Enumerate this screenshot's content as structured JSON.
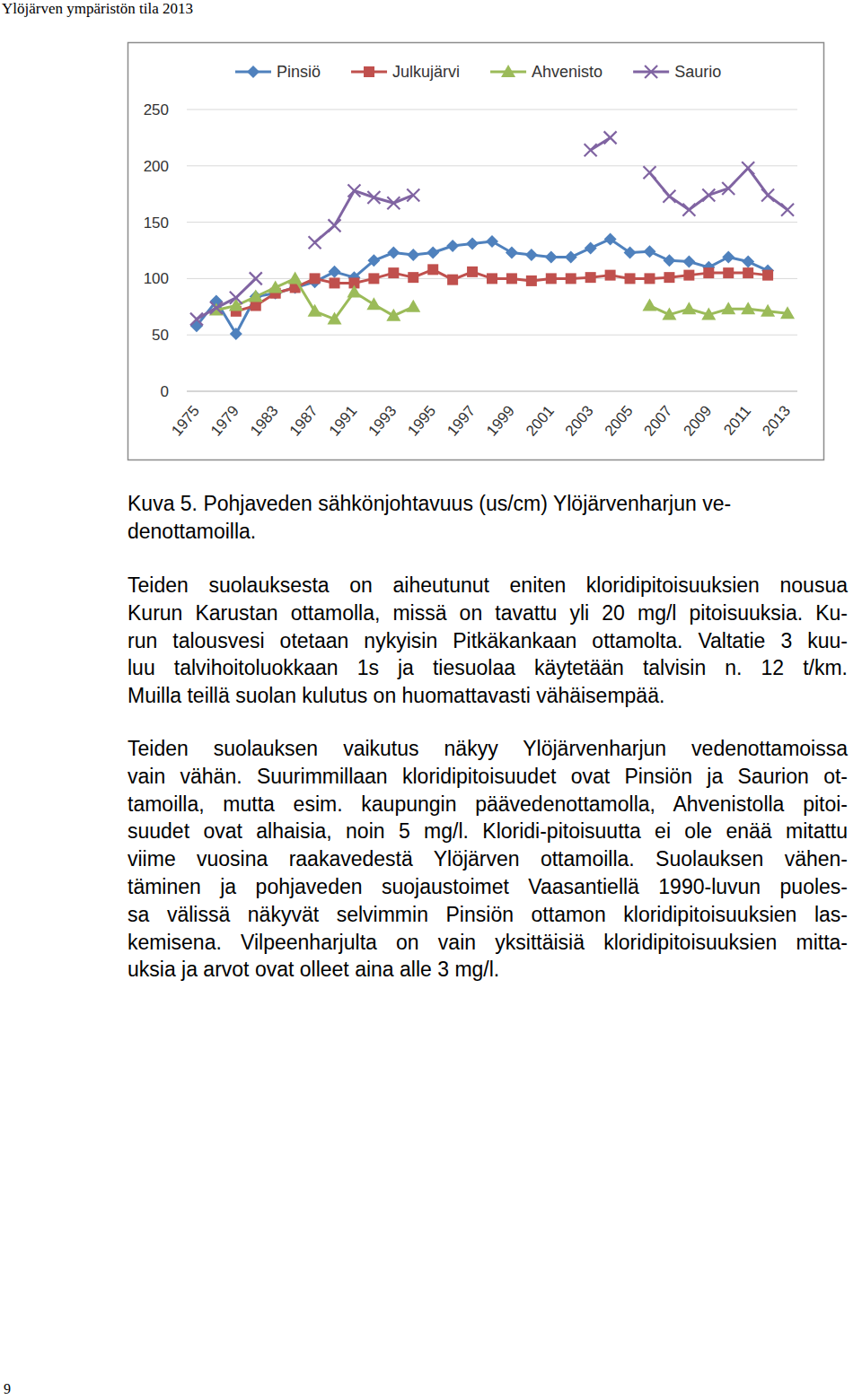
{
  "header": "Ylöjärven ympäristön tila 2013",
  "chart_data": {
    "type": "line",
    "categories": [
      "1975",
      null,
      "1979",
      null,
      "1983",
      null,
      "1987",
      null,
      "1991",
      null,
      "1993",
      null,
      "1995",
      null,
      "1997",
      null,
      "1999",
      null,
      "2001",
      null,
      "2003",
      null,
      "2005",
      null,
      "2007",
      null,
      "2009",
      null,
      "2011",
      null,
      "2013"
    ],
    "series": [
      {
        "name": "Pinsiö",
        "color": "#4f81bd",
        "marker": "diamond",
        "values": [
          58,
          80,
          51,
          84,
          87,
          92,
          97,
          106,
          101,
          116,
          123,
          121,
          123,
          129,
          131,
          133,
          123,
          121,
          119,
          119,
          127,
          135,
          123,
          124,
          116,
          115,
          110,
          119,
          115,
          107,
          null
        ]
      },
      {
        "name": "Julkujärvi",
        "color": "#c0504d",
        "marker": "square",
        "values": [
          null,
          null,
          71,
          76,
          87,
          92,
          100,
          96,
          96,
          100,
          105,
          101,
          108,
          99,
          106,
          100,
          100,
          98,
          100,
          100,
          101,
          103,
          100,
          100,
          101,
          103,
          105,
          105,
          105,
          103,
          null
        ]
      },
      {
        "name": "Ahvenisto",
        "color": "#9bbb59",
        "marker": "triangle",
        "values": [
          null,
          72,
          76,
          84,
          92,
          100,
          71,
          64,
          88,
          77,
          67,
          75,
          null,
          null,
          null,
          null,
          null,
          null,
          null,
          null,
          null,
          null,
          null,
          76,
          68,
          73,
          68,
          73,
          73,
          71,
          69
        ]
      },
      {
        "name": "Saurio",
        "color": "#8064a2",
        "marker": "x",
        "values": [
          64,
          74,
          83,
          100,
          null,
          null,
          132,
          147,
          178,
          172,
          167,
          174,
          null,
          null,
          null,
          null,
          null,
          null,
          null,
          null,
          214,
          225,
          null,
          194,
          173,
          161,
          174,
          180,
          198,
          174,
          161
        ]
      }
    ],
    "ylim": [
      0,
      250
    ],
    "yticks": [
      0,
      50,
      100,
      150,
      200,
      250
    ],
    "grid": true,
    "legend": "top"
  },
  "caption": [
    "Kuva 5. Pohjaveden sähkönjohtavuus (us/cm) Ylöjärvenharjun ve-",
    "denottamoilla."
  ],
  "paragraphs": [
    [
      "Teiden suolauksesta on aiheutunut eniten kloridipitoisuuksien nousua",
      "Kurun Karustan ottamolla, missä on tavattu yli 20 mg/l pitoisuuksia. Ku-",
      "run talousvesi otetaan nykyisin Pitkäkankaan ottamolta. Valtatie 3 kuu-",
      "luu talvihoitoluokkaan 1s ja tiesuolaa käytetään talvisin n. 12 t/km.",
      "Muilla teillä suolan kulutus on huomattavasti vähäisempää."
    ],
    [
      "Teiden suolauksen vaikutus näkyy Ylöjärvenharjun vedenottamoissa",
      "vain vähän. Suurimmillaan kloridipitoisuudet ovat Pinsiön ja Saurion ot-",
      "tamoilla, mutta esim. kaupungin päävedenottamolla, Ahvenistolla pitoi-",
      "suudet ovat alhaisia, noin 5 mg/l. Kloridi-pitoisuutta ei ole enää mitattu",
      "viime vuosina raakavedestä Ylöjärven ottamoilla. Suolauksen vähen-",
      "täminen ja pohjaveden suojaustoimet Vaasantiellä 1990-luvun puoles-",
      "sa välissä näkyvät selvimmin Pinsiön ottamon kloridipitoisuuksien las-",
      "kemisena. Vilpeenharjulta on vain yksittäisiä kloridipitoisuuksien mitta-",
      "uksia ja arvot ovat olleet aina alle 3 mg/l."
    ]
  ],
  "page_number": "9"
}
